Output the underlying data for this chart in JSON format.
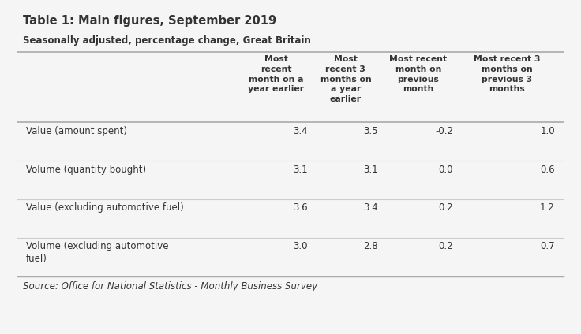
{
  "title": "Table 1: Main figures, September 2019",
  "subtitle": "Seasonally adjusted, percentage change, Great Britain",
  "col_headers": [
    "Most\nrecent\nmonth on a\nyear earlier",
    "Most\nrecent 3\nmonths on\na year\nearlier",
    "Most recent\nmonth on\nprevious\nmonth",
    "Most recent 3\nmonths on\nprevious 3\nmonths"
  ],
  "row_labels": [
    "Value (amount spent)",
    "Volume (quantity bought)",
    "Value (excluding automotive fuel)",
    "Volume (excluding automotive\nfuel)"
  ],
  "data": [
    [
      "3.4",
      "3.5",
      "-0.2",
      "1.0"
    ],
    [
      "3.1",
      "3.1",
      "0.0",
      "0.6"
    ],
    [
      "3.6",
      "3.4",
      "0.2",
      "1.2"
    ],
    [
      "3.0",
      "2.8",
      "0.2",
      "0.7"
    ]
  ],
  "source": "Source: Office for National Statistics - Monthly Business Survey",
  "bg_color": "#f5f5f5",
  "text_color": "#333333",
  "line_color": "#cccccc",
  "header_line_color": "#aaaaaa"
}
